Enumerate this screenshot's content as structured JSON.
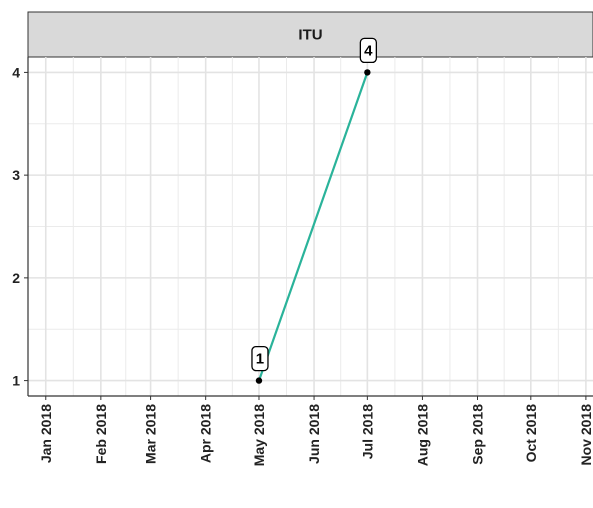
{
  "chart_data": {
    "type": "line",
    "facet_title": "ITU",
    "x": [
      "2018-05-01",
      "2018-07-01"
    ],
    "series": [
      {
        "values": [
          1,
          4
        ],
        "labels": [
          "1",
          "4"
        ]
      }
    ],
    "x_ticks": [
      "Jan 2018",
      "Feb 2018",
      "Mar 2018",
      "Apr 2018",
      "May 2018",
      "Jun 2018",
      "Jul 2018",
      "Aug 2018",
      "Sep 2018",
      "Oct 2018",
      "Nov 2018"
    ],
    "y_ticks": [
      "1",
      "2",
      "3",
      "4"
    ],
    "xlim": [
      "2017-12-22",
      "2018-11-05"
    ],
    "ylim": [
      0.85,
      4.15
    ],
    "grid": true,
    "legend": "none",
    "colors": {
      "line": "#2ab39a",
      "point": "#000000",
      "strip_bg": "#d9d9d9",
      "panel_bg": "#ffffff",
      "grid": "#ebebeb"
    }
  }
}
